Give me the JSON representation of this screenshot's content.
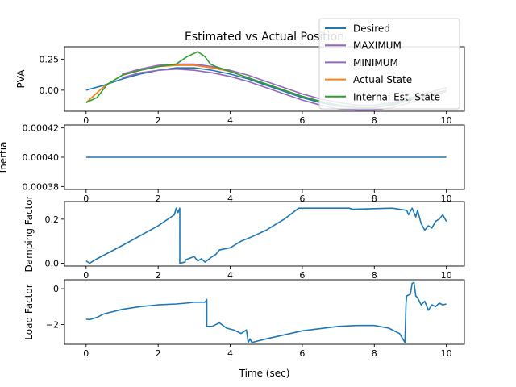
{
  "figure": {
    "title": "Estimated vs Actual Position",
    "xlabel": "Time (sec)"
  },
  "chart_data": [
    {
      "type": "line",
      "ylabel": "PVA",
      "xlim": [
        -0.6,
        10.5
      ],
      "ylim": [
        -0.17,
        0.35
      ],
      "xticks": [
        0,
        2,
        4,
        6,
        8,
        10
      ],
      "xtick_labels": [
        "0",
        "2",
        "4",
        "6",
        "8",
        "10"
      ],
      "yticks": [
        0.0,
        0.25
      ],
      "ytick_labels": [
        "0.00",
        "0.25"
      ],
      "legend": {
        "placement": "top-right",
        "entries": [
          {
            "label": "Desired",
            "color": "#1f77b4"
          },
          {
            "label": "MAXIMUM",
            "color": "#9467bd"
          },
          {
            "label": "MINIMUM",
            "color": "#9467bd"
          },
          {
            "label": "Actual State",
            "color": "#ff7f0e"
          },
          {
            "label": "Internal Est. State",
            "color": "#2ca02c"
          }
        ]
      },
      "series": [
        {
          "name": "Desired",
          "color": "#1f77b4",
          "x": [
            0,
            0.5,
            1,
            1.5,
            2,
            2.5,
            3,
            3.5,
            4,
            4.5,
            5,
            5.5,
            6,
            6.5,
            7,
            7.5,
            8,
            8.5,
            9,
            9.5,
            10
          ],
          "y": [
            0.0,
            0.04,
            0.09,
            0.13,
            0.16,
            0.18,
            0.18,
            0.16,
            0.13,
            0.09,
            0.04,
            -0.01,
            -0.06,
            -0.1,
            -0.13,
            -0.14,
            -0.14,
            -0.11,
            -0.07,
            -0.02,
            0.02
          ]
        },
        {
          "name": "MAXIMUM",
          "color": "#9467bd",
          "x": [
            1,
            1.5,
            2,
            2.5,
            3,
            3.5,
            4,
            4.5,
            5,
            5.5,
            6,
            6.5,
            7,
            7.5,
            8,
            8.5,
            9,
            9.5,
            10
          ],
          "y": [
            0.13,
            0.17,
            0.2,
            0.21,
            0.21,
            0.19,
            0.16,
            0.12,
            0.07,
            0.02,
            -0.03,
            -0.07,
            -0.1,
            -0.12,
            -0.12,
            -0.1,
            -0.06,
            -0.02,
            0.02
          ]
        },
        {
          "name": "MINIMUM",
          "color": "#9467bd",
          "x": [
            1,
            1.5,
            2,
            2.5,
            3,
            3.5,
            4,
            4.5,
            5,
            5.5,
            6,
            6.5,
            7,
            7.5,
            8,
            8.5,
            9,
            9.5,
            10
          ],
          "y": [
            0.1,
            0.14,
            0.16,
            0.17,
            0.16,
            0.14,
            0.11,
            0.07,
            0.02,
            -0.03,
            -0.08,
            -0.12,
            -0.15,
            -0.16,
            -0.16,
            -0.14,
            -0.1,
            -0.05,
            -0.01
          ]
        },
        {
          "name": "Actual State",
          "color": "#ff7f0e",
          "x": [
            0,
            0.5,
            1,
            1.5,
            2,
            2.5,
            3,
            3.5,
            4,
            4.5,
            5,
            5.5,
            6,
            6.5,
            7,
            7.5,
            8,
            8.5,
            9,
            9.5,
            10
          ],
          "y": [
            -0.1,
            0.03,
            0.12,
            0.16,
            0.19,
            0.2,
            0.2,
            0.18,
            0.15,
            0.1,
            0.05,
            0.0,
            -0.05,
            -0.09,
            -0.12,
            -0.14,
            -0.14,
            -0.12,
            -0.08,
            -0.04,
            0.0
          ]
        },
        {
          "name": "Internal Est. State",
          "color": "#2ca02c",
          "x": [
            0,
            0.3,
            0.6,
            1,
            1.5,
            2,
            2.5,
            2.8,
            3.1,
            3.3,
            3.45,
            3.6,
            4,
            4.5,
            5,
            5.5,
            6,
            6.5,
            7,
            7.5,
            8,
            8.5,
            9,
            9.5,
            10
          ],
          "y": [
            -0.1,
            -0.06,
            0.05,
            0.12,
            0.16,
            0.19,
            0.21,
            0.27,
            0.31,
            0.27,
            0.21,
            0.19,
            0.15,
            0.1,
            0.05,
            0.0,
            -0.05,
            -0.09,
            -0.12,
            -0.14,
            -0.14,
            -0.12,
            -0.08,
            -0.04,
            0.0
          ]
        }
      ]
    },
    {
      "type": "line",
      "ylabel": "Inertia",
      "xlim": [
        -0.6,
        10.5
      ],
      "ylim": [
        0.000378,
        0.000422
      ],
      "xticks": [
        0,
        2,
        4,
        6,
        8,
        10
      ],
      "xtick_labels": [
        "0",
        "2",
        "4",
        "6",
        "8",
        "10"
      ],
      "yticks": [
        0.00038,
        0.0004,
        0.00042
      ],
      "ytick_labels": [
        "0.00038",
        "0.00040",
        "0.00042"
      ],
      "series": [
        {
          "color": "#1f77b4",
          "x": [
            0,
            10
          ],
          "y": [
            0.0004,
            0.0004
          ]
        }
      ]
    },
    {
      "type": "line",
      "ylabel": "Damping Factor",
      "xlim": [
        -0.6,
        10.5
      ],
      "ylim": [
        -0.013,
        0.28
      ],
      "xticks": [
        0,
        2,
        4,
        6,
        8,
        10
      ],
      "xtick_labels": [
        "0",
        "2",
        "4",
        "6",
        "8",
        "10"
      ],
      "yticks": [
        0.0,
        0.2
      ],
      "ytick_labels": [
        "0.0",
        "0.2"
      ],
      "series": [
        {
          "color": "#1f77b4",
          "x": [
            0,
            0.1,
            0.3,
            1,
            2,
            2.45,
            2.5,
            2.55,
            2.6,
            2.6,
            2.75,
            2.75,
            3.0,
            3.1,
            3.2,
            3.3,
            3.5,
            3.6,
            3.7,
            4.0,
            4.3,
            4.6,
            5,
            5.5,
            5.9,
            6.5,
            7.3,
            7.4,
            8.5,
            8.9,
            8.95,
            9.05,
            9.15,
            9.2,
            9.3,
            9.4,
            9.5,
            9.6,
            9.7,
            9.8,
            9.9,
            10.0
          ],
          "y": [
            0.01,
            0.0,
            0.02,
            0.08,
            0.17,
            0.22,
            0.25,
            0.23,
            0.25,
            0.0,
            0.005,
            0.015,
            0.03,
            0.01,
            0.02,
            0.005,
            0.03,
            0.04,
            0.06,
            0.07,
            0.1,
            0.12,
            0.15,
            0.2,
            0.25,
            0.25,
            0.25,
            0.245,
            0.25,
            0.24,
            0.22,
            0.25,
            0.21,
            0.24,
            0.18,
            0.15,
            0.17,
            0.16,
            0.19,
            0.2,
            0.22,
            0.19
          ]
        }
      ]
    },
    {
      "type": "line",
      "ylabel": "Load Factor",
      "xlim": [
        -0.6,
        10.5
      ],
      "ylim": [
        -3.1,
        0.5
      ],
      "xticks": [
        0,
        2,
        4,
        6,
        8,
        10
      ],
      "xtick_labels": [
        "0",
        "2",
        "4",
        "6",
        "8",
        "10"
      ],
      "yticks": [
        -2,
        0
      ],
      "ytick_labels": [
        "−2",
        "0"
      ],
      "series": [
        {
          "color": "#1f77b4",
          "x": [
            0,
            0.1,
            0.3,
            0.5,
            1,
            1.5,
            2,
            2.5,
            2.8,
            3.0,
            3.3,
            3.35,
            3.35,
            3.5,
            3.7,
            3.9,
            4.1,
            4.3,
            4.45,
            4.5,
            4.55,
            4.6,
            5,
            6,
            7,
            7.5,
            8,
            8.4,
            8.7,
            8.85,
            8.88,
            8.9,
            9.0,
            9.05,
            9.1,
            9.15,
            9.2,
            9.3,
            9.4,
            9.5,
            9.6,
            9.7,
            9.8,
            9.9,
            10.0
          ],
          "y": [
            -1.7,
            -1.72,
            -1.6,
            -1.4,
            -1.15,
            -1.0,
            -0.9,
            -0.85,
            -0.8,
            -0.75,
            -0.75,
            -0.6,
            -2.1,
            -2.1,
            -1.9,
            -2.2,
            -2.3,
            -2.5,
            -2.3,
            -3.0,
            -2.8,
            -3.0,
            -2.8,
            -2.35,
            -2.1,
            -2.05,
            -2.05,
            -2.2,
            -2.5,
            -3.0,
            -0.8,
            -0.4,
            -0.3,
            0.3,
            0.35,
            -0.4,
            -0.5,
            -0.9,
            -0.7,
            -1.2,
            -0.9,
            -1.0,
            -0.8,
            -0.9,
            -0.85
          ]
        }
      ]
    }
  ]
}
